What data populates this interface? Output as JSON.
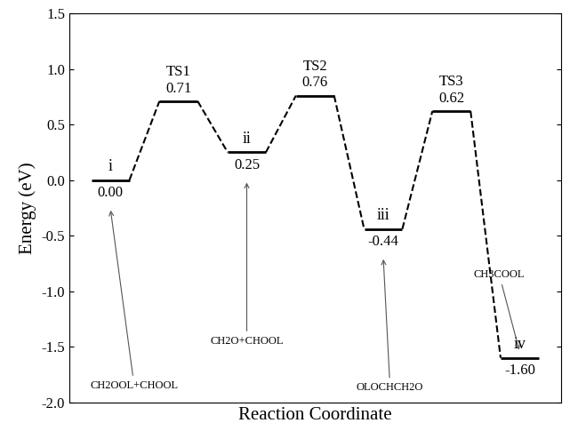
{
  "chart_data": {
    "type": "energy_profile",
    "categories": [
      "i",
      "TS1",
      "ii",
      "TS2",
      "iii",
      "TS3",
      "iv"
    ],
    "values": [
      0.0,
      0.71,
      0.25,
      0.76,
      -0.44,
      0.62,
      -1.6
    ],
    "value_labels": [
      "0.00",
      "0.71",
      "0.25",
      "0.76",
      "-0.44",
      "0.62",
      "-1.60"
    ],
    "data_labels": true,
    "y_label": "Energy (eV)",
    "x_label": "Reaction Coordinate",
    "ylim": [
      -2.0,
      1.5
    ],
    "yticks": [
      -2.0,
      -1.5,
      -1.0,
      -0.5,
      0.0,
      0.5,
      1.0,
      1.5
    ],
    "tick_labels": "y",
    "color": "#000000",
    "line_style": "dashed",
    "annotations": [
      {
        "state": "i",
        "text": "CH2OOL+CHOOL"
      },
      {
        "state": "ii",
        "text": "CH2O+CHOOL"
      },
      {
        "state": "iii",
        "text": "OLOCHCH2O"
      },
      {
        "state": "iv",
        "text": "CH3COOL"
      }
    ]
  }
}
